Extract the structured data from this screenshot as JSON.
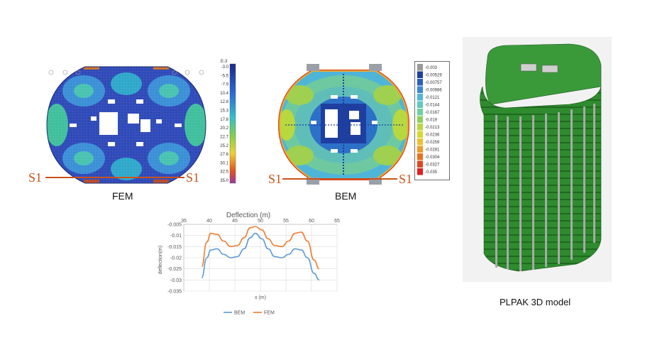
{
  "labels": {
    "fem": "FEM",
    "bem": "BEM",
    "plpak_caption": "PLPAK 3D model",
    "section": "S1",
    "fem_scale_exp": "E-3"
  },
  "fem_legend": [
    "-3.0",
    "-5.5",
    "-7.9",
    "-10.4",
    "-12.8",
    "-15.3",
    "-17.8",
    "-20.2",
    "-22.7",
    "-25.2",
    "-27.6",
    "-30.1",
    "-32.5",
    "-35.0"
  ],
  "bem_legend": [
    "-0.003",
    "-0.00529",
    "-0.00757",
    "-0.00986",
    "-0.0121",
    "-0.0144",
    "-0.0167",
    "-0.019",
    "-0.0213",
    "-0.0236",
    "-0.0259",
    "-0.0281",
    "-0.0304",
    "-0.0327",
    "-0.035"
  ],
  "colors": {
    "fem": "#ed7d31",
    "bem": "#5b9bd5",
    "section": "#c8531a",
    "model_green": "#2e8b2e"
  },
  "chart_data": {
    "type": "line",
    "title": "Deflection (m)",
    "xlabel": "x (m)",
    "ylabel": "deflection(m)",
    "xlim": [
      35,
      65
    ],
    "ylim": [
      -0.035,
      -0.005
    ],
    "xticks": [
      "35",
      "40",
      "45",
      "50",
      "55",
      "60",
      "65"
    ],
    "yticks": [
      "-0.005",
      "-0.01",
      "-0.015",
      "-0.02",
      "-0.025",
      "-0.03",
      "-0.035"
    ],
    "x": [
      38.5,
      39.5,
      40.3,
      41.5,
      42.8,
      44.2,
      45.5,
      46.8,
      48,
      49,
      50.3,
      51.5,
      52.8,
      54.2,
      55.5,
      56.8,
      58,
      59.2,
      60.5,
      61.5
    ],
    "series": [
      {
        "name": "BEM",
        "values": [
          -0.029,
          -0.02,
          -0.0165,
          -0.016,
          -0.0185,
          -0.02,
          -0.0195,
          -0.016,
          -0.011,
          -0.009,
          -0.0115,
          -0.016,
          -0.0195,
          -0.02,
          -0.0185,
          -0.016,
          -0.0165,
          -0.02,
          -0.027,
          -0.03
        ]
      },
      {
        "name": "FEM",
        "values": [
          -0.024,
          -0.013,
          -0.009,
          -0.0095,
          -0.0125,
          -0.015,
          -0.0145,
          -0.011,
          -0.0065,
          -0.006,
          -0.0075,
          -0.0115,
          -0.0145,
          -0.015,
          -0.0125,
          -0.009,
          -0.0085,
          -0.0125,
          -0.021,
          -0.025
        ]
      }
    ],
    "legend": "bottom"
  }
}
